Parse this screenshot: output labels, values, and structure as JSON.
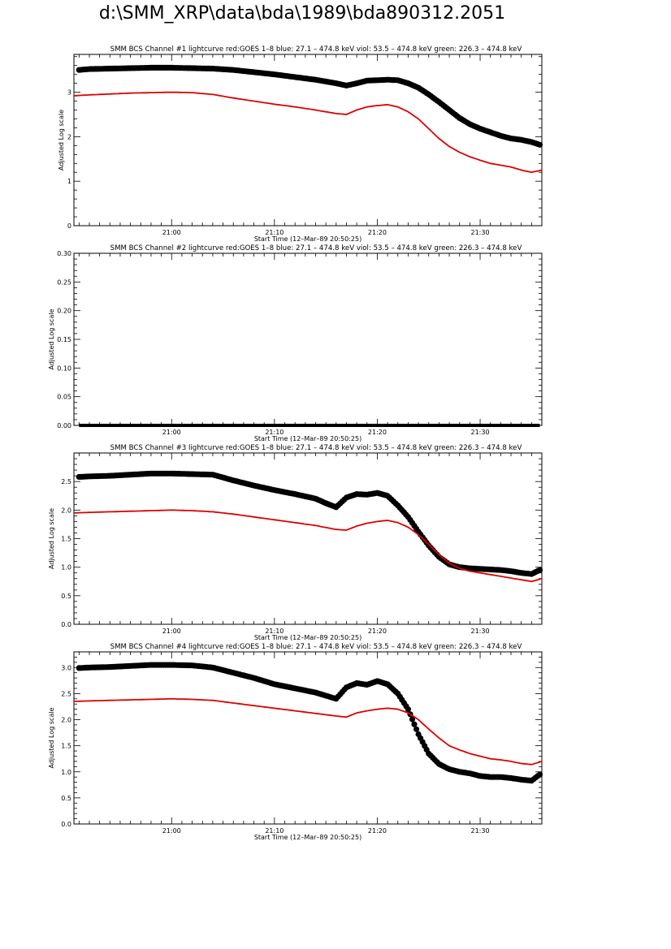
{
  "page": {
    "title": "d:\\SMM_XRP\\data\\bda\\1989\\bda890312.2051"
  },
  "chart_data": [
    {
      "type": "scatter",
      "title": "SMM BCS Channel #1 lightcurve  red:GOES 1–8  blue: 27.1 – 474.8 keV  viol: 53.5 – 474.8 keV  green: 226.3 – 474.8 keV",
      "xlabel": "Start Time (12–Mar–89 20:50:25)",
      "ylabel": "Adjusted Log scale",
      "xlim": [
        50.5,
        96.0
      ],
      "ylim": [
        0,
        3.85
      ],
      "xticks": [
        60,
        70,
        80,
        90
      ],
      "xticklabels": [
        "21:00",
        "21:10",
        "21:20",
        "21:30"
      ],
      "yticks": [
        0,
        1,
        2,
        3
      ],
      "yticklabels": [
        "0",
        "1",
        "2",
        "3"
      ],
      "grid": false,
      "series": [
        {
          "color": "#000000",
          "style": "dots",
          "x": [
            51,
            52,
            54,
            56,
            58,
            60,
            62,
            64,
            66,
            68,
            70,
            72,
            74,
            76,
            77,
            78,
            79,
            80,
            81,
            82,
            83,
            84,
            85,
            86,
            87,
            88,
            89,
            90,
            91,
            92,
            93,
            94,
            95,
            95.8
          ],
          "y": [
            3.5,
            3.52,
            3.53,
            3.54,
            3.55,
            3.55,
            3.54,
            3.53,
            3.5,
            3.45,
            3.4,
            3.34,
            3.28,
            3.2,
            3.15,
            3.2,
            3.26,
            3.27,
            3.28,
            3.27,
            3.2,
            3.1,
            2.95,
            2.78,
            2.6,
            2.42,
            2.28,
            2.18,
            2.1,
            2.02,
            1.96,
            1.93,
            1.88,
            1.82
          ]
        },
        {
          "color": "#dd0000",
          "style": "line",
          "x": [
            50.5,
            52,
            54,
            56,
            58,
            60,
            62,
            64,
            66,
            68,
            70,
            72,
            74,
            76,
            77,
            78,
            79,
            80,
            81,
            82,
            83,
            84,
            85,
            86,
            87,
            88,
            89,
            90,
            91,
            92,
            93,
            94,
            95,
            96
          ],
          "y": [
            2.92,
            2.94,
            2.96,
            2.98,
            2.99,
            3.0,
            2.99,
            2.95,
            2.87,
            2.8,
            2.73,
            2.67,
            2.6,
            2.52,
            2.5,
            2.6,
            2.67,
            2.7,
            2.72,
            2.67,
            2.56,
            2.4,
            2.18,
            1.96,
            1.78,
            1.65,
            1.55,
            1.47,
            1.4,
            1.36,
            1.32,
            1.25,
            1.2,
            1.25
          ]
        }
      ]
    },
    {
      "type": "scatter",
      "title": "SMM BCS Channel #2 lightcurve  red:GOES 1–8  blue: 27.1 – 474.8 keV  viol: 53.5 – 474.8 keV  green: 226.3 – 474.8 keV",
      "xlabel": "Start Time (12–Mar–89 20:50:25)",
      "ylabel": "Adjusted Log scale",
      "xlim": [
        50.5,
        96.0
      ],
      "ylim": [
        0,
        0.3
      ],
      "xticks": [
        60,
        70,
        80,
        90
      ],
      "xticklabels": [
        "21:00",
        "21:10",
        "21:20",
        "21:30"
      ],
      "yticks": [
        0,
        0.05,
        0.1,
        0.15,
        0.2,
        0.25,
        0.3
      ],
      "yticklabels": [
        "0.00",
        "0.05",
        "0.10",
        "0.15",
        "0.20",
        "0.25",
        "0.30"
      ],
      "grid": false,
      "series": [
        {
          "color": "#000000",
          "style": "flat",
          "x": [
            51,
            95.8
          ],
          "y": [
            0,
            0
          ]
        }
      ]
    },
    {
      "type": "scatter",
      "title": "SMM BCS Channel #3 lightcurve  red:GOES 1–8  blue: 27.1 – 474.8 keV  viol: 53.5 – 474.8 keV  green: 226.3 – 474.8 keV",
      "xlabel": "Start Time (12–Mar–89 20:50:25)",
      "ylabel": "Adjusted Log scale",
      "xlim": [
        50.5,
        96.0
      ],
      "ylim": [
        0,
        3.0
      ],
      "xticks": [
        60,
        70,
        80,
        90
      ],
      "xticklabels": [
        "21:00",
        "21:10",
        "21:20",
        "21:30"
      ],
      "yticks": [
        0,
        0.5,
        1.0,
        1.5,
        2.0,
        2.5
      ],
      "yticklabels": [
        "0.0",
        "0.5",
        "1.0",
        "1.5",
        "2.0",
        "2.5"
      ],
      "grid": false,
      "series": [
        {
          "color": "#000000",
          "style": "dots",
          "x": [
            51,
            52,
            54,
            56,
            58,
            60,
            62,
            64,
            66,
            68,
            70,
            72,
            74,
            75,
            76,
            77,
            78,
            79,
            80,
            81,
            82,
            83,
            84,
            85,
            86,
            87,
            88,
            89,
            90,
            91,
            92,
            93,
            94,
            95,
            95.8
          ],
          "y": [
            2.58,
            2.59,
            2.6,
            2.62,
            2.64,
            2.64,
            2.63,
            2.62,
            2.52,
            2.43,
            2.35,
            2.28,
            2.2,
            2.12,
            2.05,
            2.22,
            2.28,
            2.27,
            2.3,
            2.25,
            2.08,
            1.88,
            1.62,
            1.38,
            1.18,
            1.05,
            1.0,
            0.98,
            0.97,
            0.96,
            0.95,
            0.93,
            0.9,
            0.88,
            0.95
          ]
        },
        {
          "color": "#dd0000",
          "style": "line",
          "x": [
            50.5,
            52,
            54,
            56,
            58,
            60,
            62,
            64,
            66,
            68,
            70,
            72,
            74,
            76,
            77,
            78,
            79,
            80,
            81,
            82,
            83,
            84,
            85,
            86,
            87,
            88,
            89,
            90,
            91,
            92,
            93,
            94,
            95,
            96
          ],
          "y": [
            1.95,
            1.96,
            1.97,
            1.98,
            1.99,
            2.0,
            1.99,
            1.97,
            1.93,
            1.88,
            1.83,
            1.78,
            1.73,
            1.66,
            1.65,
            1.72,
            1.77,
            1.8,
            1.82,
            1.78,
            1.7,
            1.57,
            1.4,
            1.22,
            1.07,
            0.98,
            0.93,
            0.9,
            0.87,
            0.84,
            0.81,
            0.78,
            0.75,
            0.8
          ]
        }
      ]
    },
    {
      "type": "scatter",
      "title": "SMM BCS Channel #4 lightcurve  red:GOES 1–8  blue: 27.1 – 474.8 keV  viol: 53.5 – 474.8 keV  green: 226.3 – 474.8 keV",
      "xlabel": "Start Time (12–Mar–89 20:50:25)",
      "ylabel": "Adjusted Log scale",
      "xlim": [
        50.5,
        96.0
      ],
      "ylim": [
        0,
        3.3
      ],
      "xticks": [
        60,
        70,
        80,
        90
      ],
      "xticklabels": [
        "21:00",
        "21:10",
        "21:20",
        "21:30"
      ],
      "yticks": [
        0,
        0.5,
        1.0,
        1.5,
        2.0,
        2.5,
        3.0
      ],
      "yticklabels": [
        "0.0",
        "0.5",
        "1.0",
        "1.5",
        "2.0",
        "2.5",
        "3.0"
      ],
      "grid": false,
      "series": [
        {
          "color": "#000000",
          "style": "dots",
          "x": [
            51,
            52,
            54,
            56,
            58,
            60,
            62,
            64,
            66,
            68,
            70,
            72,
            74,
            75,
            76,
            77,
            78,
            79,
            80,
            81,
            82,
            83,
            84,
            85,
            86,
            87,
            88,
            89,
            90,
            91,
            92,
            93,
            94,
            95,
            95.8
          ],
          "y": [
            2.99,
            3.0,
            3.01,
            3.03,
            3.05,
            3.05,
            3.04,
            3.0,
            2.9,
            2.8,
            2.68,
            2.6,
            2.52,
            2.46,
            2.4,
            2.62,
            2.7,
            2.67,
            2.74,
            2.68,
            2.5,
            2.2,
            1.72,
            1.35,
            1.15,
            1.05,
            1.0,
            0.97,
            0.92,
            0.9,
            0.9,
            0.88,
            0.85,
            0.83,
            0.95
          ]
        },
        {
          "color": "#dd0000",
          "style": "line",
          "x": [
            50.5,
            52,
            54,
            56,
            58,
            60,
            62,
            64,
            66,
            68,
            70,
            72,
            74,
            76,
            77,
            78,
            79,
            80,
            81,
            82,
            83,
            84,
            85,
            86,
            87,
            88,
            89,
            90,
            91,
            92,
            93,
            94,
            95,
            96
          ],
          "y": [
            2.35,
            2.36,
            2.37,
            2.38,
            2.39,
            2.4,
            2.39,
            2.37,
            2.32,
            2.27,
            2.22,
            2.17,
            2.12,
            2.07,
            2.05,
            2.13,
            2.17,
            2.2,
            2.22,
            2.2,
            2.13,
            2.0,
            1.82,
            1.65,
            1.5,
            1.42,
            1.35,
            1.3,
            1.25,
            1.23,
            1.2,
            1.16,
            1.14,
            1.2
          ]
        }
      ]
    }
  ]
}
